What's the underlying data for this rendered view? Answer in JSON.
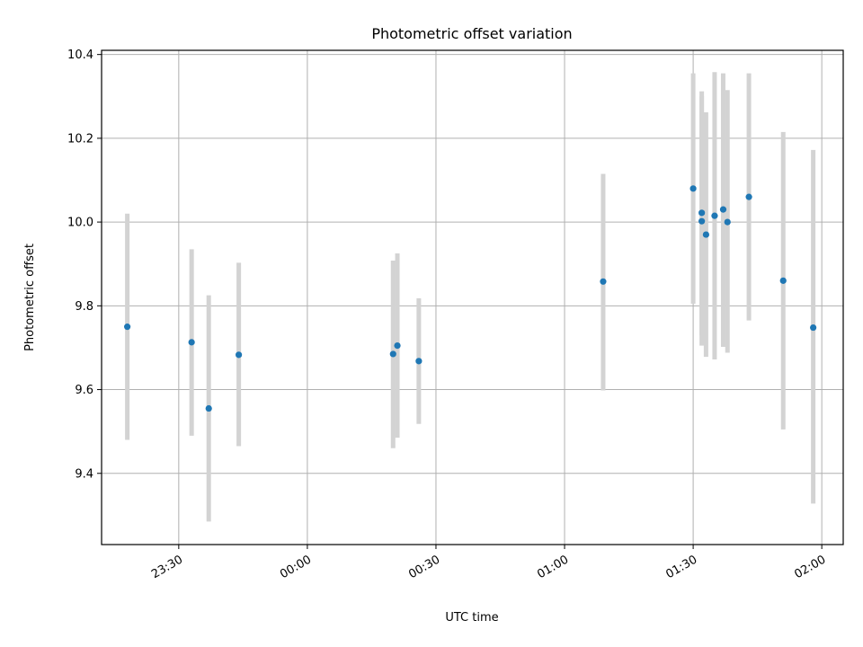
{
  "chart_data": {
    "type": "scatter",
    "title": "Photometric offset variation",
    "xlabel": "UTC time",
    "ylabel": "Photometric offset",
    "x_ticks": [
      "23:30",
      "00:00",
      "00:30",
      "01:00",
      "01:30",
      "02:00"
    ],
    "y_ticks": [
      "9.4",
      "9.6",
      "9.8",
      "10.0",
      "10.2",
      "10.4"
    ],
    "xlim": [
      "23:12",
      "02:05"
    ],
    "ylim": [
      9.23,
      10.41
    ],
    "grid": true,
    "colors": {
      "point": "#1f77b4",
      "errorbar": "#d3d3d3",
      "grid": "#b0b0b0"
    },
    "series": [
      {
        "points": [
          {
            "x": "23:18",
            "y": 9.75,
            "ylo": 9.48,
            "yhi": 10.02
          },
          {
            "x": "23:33",
            "y": 9.713,
            "ylo": 9.49,
            "yhi": 9.935
          },
          {
            "x": "23:37",
            "y": 9.555,
            "ylo": 9.285,
            "yhi": 9.825
          },
          {
            "x": "23:44",
            "y": 9.683,
            "ylo": 9.465,
            "yhi": 9.903
          },
          {
            "x": "00:20",
            "y": 9.685,
            "ylo": 9.46,
            "yhi": 9.908
          },
          {
            "x": "00:21",
            "y": 9.705,
            "ylo": 9.485,
            "yhi": 9.925
          },
          {
            "x": "00:26",
            "y": 9.668,
            "ylo": 9.518,
            "yhi": 9.818
          },
          {
            "x": "01:09",
            "y": 9.858,
            "ylo": 9.598,
            "yhi": 10.115
          },
          {
            "x": "01:30",
            "y": 10.08,
            "ylo": 9.805,
            "yhi": 10.355
          },
          {
            "x": "01:32",
            "y": 10.022,
            "ylo": 9.73,
            "yhi": 10.312
          },
          {
            "x": "01:32",
            "y": 10.002,
            "ylo": 9.705,
            "yhi": 10.3
          },
          {
            "x": "01:33",
            "y": 9.97,
            "ylo": 9.678,
            "yhi": 10.262
          },
          {
            "x": "01:35",
            "y": 10.015,
            "ylo": 9.672,
            "yhi": 10.358
          },
          {
            "x": "01:37",
            "y": 10.03,
            "ylo": 9.702,
            "yhi": 10.355
          },
          {
            "x": "01:38",
            "y": 10.0,
            "ylo": 9.688,
            "yhi": 10.315
          },
          {
            "x": "01:43",
            "y": 10.06,
            "ylo": 9.765,
            "yhi": 10.355
          },
          {
            "x": "01:51",
            "y": 9.86,
            "ylo": 9.505,
            "yhi": 10.215
          },
          {
            "x": "01:58",
            "y": 9.748,
            "ylo": 9.328,
            "yhi": 10.172
          }
        ]
      }
    ]
  }
}
